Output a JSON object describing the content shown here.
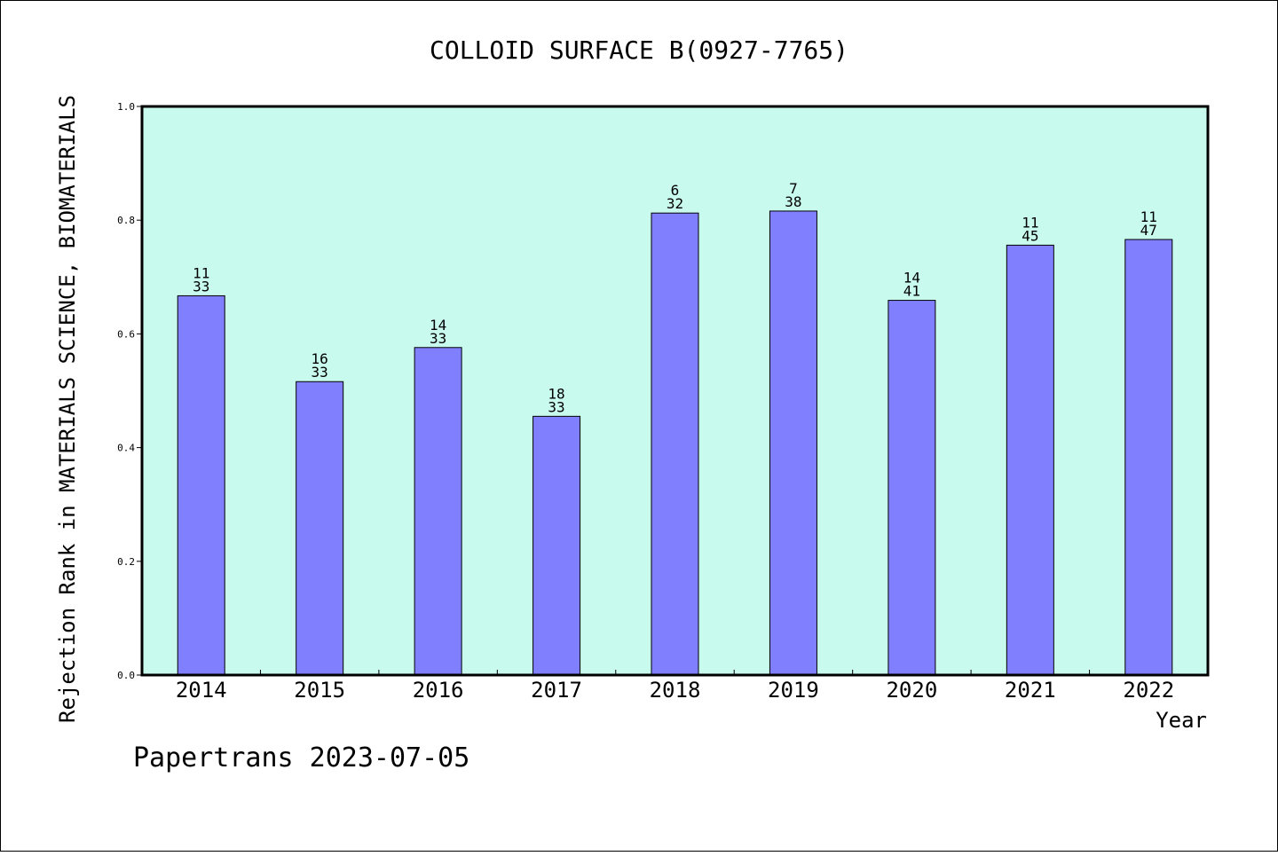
{
  "chart_data": {
    "type": "bar",
    "title": "COLLOID SURFACE B(0927-7765)",
    "xlabel": "Year",
    "ylabel": "Rejection Rank in MATERIALS SCIENCE, BIOMATERIALS",
    "ylim": [
      0,
      1.0
    ],
    "yticks": [
      "0.0",
      "0.2",
      "0.4",
      "0.6",
      "0.8",
      "1.0"
    ],
    "categories": [
      "2014",
      "2015",
      "2016",
      "2017",
      "2018",
      "2019",
      "2020",
      "2021",
      "2022"
    ],
    "values": [
      0.667,
      0.516,
      0.576,
      0.455,
      0.8125,
      0.816,
      0.659,
      0.756,
      0.766
    ],
    "rank": [
      "11",
      "16",
      "14",
      "18",
      "6",
      "7",
      "14",
      "11",
      "11"
    ],
    "total": [
      "33",
      "33",
      "33",
      "33",
      "32",
      "38",
      "41",
      "45",
      "47"
    ],
    "colors": {
      "bar": "#8080ff",
      "plot_background": "#c8faee"
    },
    "grid": false,
    "legend": "none"
  },
  "footer": "Papertrans 2023-07-05"
}
